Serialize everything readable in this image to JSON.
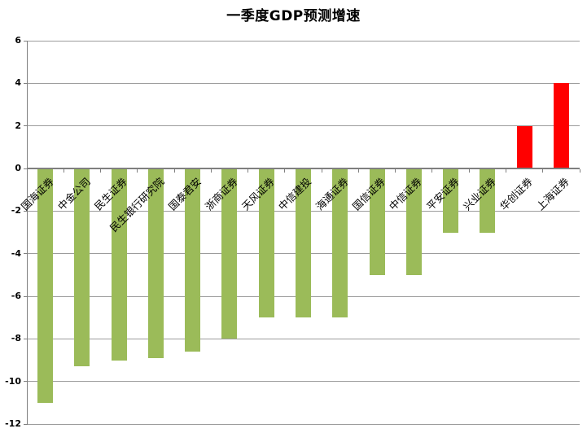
{
  "chart_data": {
    "type": "bar",
    "title": "一季度GDP预测增速",
    "categories": [
      "国海证券",
      "中金公司",
      "民生证券",
      "民生银行研究院",
      "国泰君安",
      "浙商证券",
      "天风证券",
      "中信建投",
      "海通证券",
      "国信证券",
      "中信证券",
      "平安证券",
      "兴业证券",
      "华创证券",
      "上海证券"
    ],
    "values": [
      -11,
      -9.3,
      -9,
      -8.9,
      -8.6,
      -8,
      -7,
      -7,
      -7,
      -5,
      -5,
      -3,
      -3,
      2,
      4
    ],
    "xlabel": "",
    "ylabel": "",
    "ylim": [
      -12,
      6
    ],
    "yticks": [
      6,
      4,
      2,
      0,
      -2,
      -4,
      -6,
      -8,
      -10,
      -12
    ],
    "grid": true,
    "legend": "none",
    "category_label_rotation": 45,
    "colors": {
      "positive_bar": "#FF0000",
      "negative_bar": "#9BBB59",
      "gridline": "#9C9C9C",
      "axis": "#7F7F7F",
      "text": "#000000",
      "background": "#FFFFFF"
    }
  }
}
